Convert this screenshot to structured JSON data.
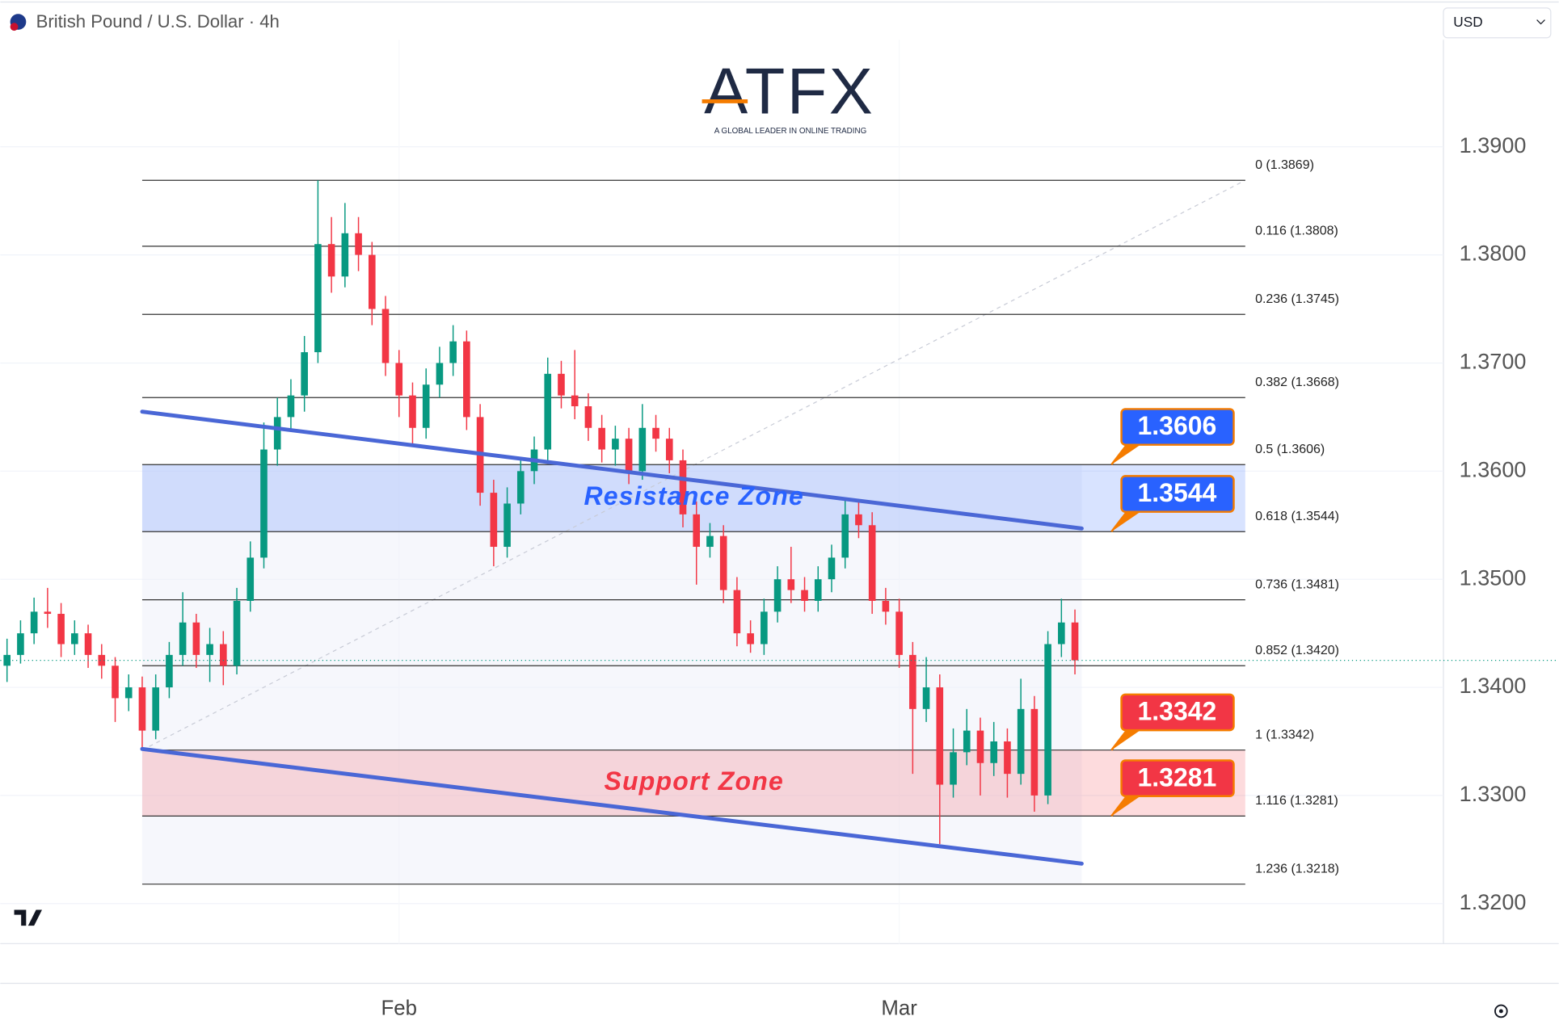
{
  "header": {
    "title": "British Pound / U.S. Dollar · 4h",
    "currency": "USD"
  },
  "logo": {
    "name": "ATFX",
    "tagline": "A GLOBAL LEADER IN ONLINE TRADING"
  },
  "chart_data": {
    "type": "candlestick",
    "up_color": "#089981",
    "down_color": "#f23645",
    "ohlc": [
      [
        1.342,
        1.3445,
        1.3405,
        1.343
      ],
      [
        1.343,
        1.3462,
        1.3422,
        1.345
      ],
      [
        1.345,
        1.3483,
        1.344,
        1.347
      ],
      [
        1.347,
        1.3492,
        1.3455,
        1.3468
      ],
      [
        1.3468,
        1.3478,
        1.3428,
        1.344
      ],
      [
        1.344,
        1.3462,
        1.343,
        1.345
      ],
      [
        1.345,
        1.3458,
        1.3418,
        1.343
      ],
      [
        1.343,
        1.344,
        1.3408,
        1.342
      ],
      [
        1.342,
        1.3428,
        1.3368,
        1.339
      ],
      [
        1.339,
        1.3412,
        1.3378,
        1.34
      ],
      [
        1.34,
        1.341,
        1.3342,
        1.336
      ],
      [
        1.336,
        1.3412,
        1.3352,
        1.34
      ],
      [
        1.34,
        1.3442,
        1.339,
        1.343
      ],
      [
        1.343,
        1.3488,
        1.342,
        1.346
      ],
      [
        1.346,
        1.3468,
        1.3418,
        1.343
      ],
      [
        1.343,
        1.3455,
        1.3405,
        1.344
      ],
      [
        1.344,
        1.3452,
        1.3402,
        1.342
      ],
      [
        1.342,
        1.3492,
        1.3412,
        1.348
      ],
      [
        1.348,
        1.3535,
        1.347,
        1.352
      ],
      [
        1.352,
        1.3645,
        1.351,
        1.362
      ],
      [
        1.362,
        1.3668,
        1.3605,
        1.365
      ],
      [
        1.365,
        1.3685,
        1.3638,
        1.367
      ],
      [
        1.367,
        1.3725,
        1.3655,
        1.371
      ],
      [
        1.371,
        1.3869,
        1.37,
        1.381
      ],
      [
        1.381,
        1.3835,
        1.3765,
        1.378
      ],
      [
        1.378,
        1.3848,
        1.377,
        1.382
      ],
      [
        1.382,
        1.3835,
        1.3785,
        1.38
      ],
      [
        1.38,
        1.3812,
        1.3735,
        1.375
      ],
      [
        1.375,
        1.3762,
        1.3688,
        1.37
      ],
      [
        1.37,
        1.3712,
        1.365,
        1.367
      ],
      [
        1.367,
        1.3682,
        1.3625,
        1.364
      ],
      [
        1.364,
        1.3695,
        1.363,
        1.368
      ],
      [
        1.368,
        1.3715,
        1.3668,
        1.37
      ],
      [
        1.37,
        1.3735,
        1.3688,
        1.372
      ],
      [
        1.372,
        1.373,
        1.3638,
        1.365
      ],
      [
        1.365,
        1.3662,
        1.3568,
        1.358
      ],
      [
        1.358,
        1.3592,
        1.3512,
        1.353
      ],
      [
        1.353,
        1.3585,
        1.352,
        1.357
      ],
      [
        1.357,
        1.3612,
        1.356,
        1.36
      ],
      [
        1.36,
        1.3632,
        1.3588,
        1.362
      ],
      [
        1.362,
        1.3705,
        1.361,
        1.369
      ],
      [
        1.369,
        1.3702,
        1.3658,
        1.367
      ],
      [
        1.367,
        1.3712,
        1.3648,
        1.366
      ],
      [
        1.366,
        1.3672,
        1.3628,
        1.364
      ],
      [
        1.364,
        1.3652,
        1.3608,
        1.362
      ],
      [
        1.362,
        1.3642,
        1.3605,
        1.363
      ],
      [
        1.363,
        1.364,
        1.3588,
        1.36
      ],
      [
        1.36,
        1.3662,
        1.3592,
        1.364
      ],
      [
        1.364,
        1.3652,
        1.3618,
        1.363
      ],
      [
        1.363,
        1.364,
        1.3598,
        1.361
      ],
      [
        1.361,
        1.362,
        1.3548,
        1.356
      ],
      [
        1.356,
        1.3572,
        1.3495,
        1.353
      ],
      [
        1.353,
        1.3552,
        1.352,
        1.354
      ],
      [
        1.354,
        1.355,
        1.3478,
        1.349
      ],
      [
        1.349,
        1.3502,
        1.3438,
        1.345
      ],
      [
        1.345,
        1.3462,
        1.3432,
        1.344
      ],
      [
        1.344,
        1.3482,
        1.343,
        1.347
      ],
      [
        1.347,
        1.3512,
        1.346,
        1.35
      ],
      [
        1.35,
        1.353,
        1.3478,
        1.349
      ],
      [
        1.349,
        1.3502,
        1.347,
        1.348
      ],
      [
        1.348,
        1.3512,
        1.347,
        1.35
      ],
      [
        1.35,
        1.3532,
        1.3488,
        1.352
      ],
      [
        1.352,
        1.3575,
        1.351,
        1.356
      ],
      [
        1.356,
        1.3572,
        1.3538,
        1.355
      ],
      [
        1.355,
        1.3562,
        1.3468,
        1.348
      ],
      [
        1.348,
        1.3492,
        1.3458,
        1.347
      ],
      [
        1.347,
        1.3482,
        1.3418,
        1.343
      ],
      [
        1.343,
        1.3442,
        1.332,
        1.338
      ],
      [
        1.338,
        1.3428,
        1.3368,
        1.34
      ],
      [
        1.34,
        1.3412,
        1.3255,
        1.331
      ],
      [
        1.331,
        1.3362,
        1.3298,
        1.334
      ],
      [
        1.334,
        1.338,
        1.3328,
        1.336
      ],
      [
        1.336,
        1.3372,
        1.33,
        1.333
      ],
      [
        1.333,
        1.3368,
        1.3318,
        1.335
      ],
      [
        1.335,
        1.3362,
        1.3298,
        1.332
      ],
      [
        1.332,
        1.3408,
        1.331,
        1.338
      ],
      [
        1.338,
        1.3392,
        1.3285,
        1.33
      ],
      [
        1.33,
        1.3452,
        1.3292,
        1.344
      ],
      [
        1.344,
        1.3482,
        1.3428,
        1.346
      ],
      [
        1.346,
        1.3472,
        1.3412,
        1.3425
      ]
    ],
    "xlim": [
      -0.5,
      106.26
    ],
    "xticks": [
      {
        "value": 29,
        "label": "Feb"
      },
      {
        "value": 66,
        "label": "Mar"
      }
    ],
    "ylim": [
      1.3163,
      1.3999
    ],
    "yticks": [
      {
        "value": 1.32,
        "label": "1.3200"
      },
      {
        "value": 1.33,
        "label": "1.3300"
      },
      {
        "value": 1.34,
        "label": "1.3400"
      },
      {
        "value": 1.35,
        "label": "1.3500"
      },
      {
        "value": 1.36,
        "label": "1.3600"
      },
      {
        "value": 1.37,
        "label": "1.3700"
      },
      {
        "value": 1.38,
        "label": "1.3800"
      },
      {
        "value": 1.39,
        "label": "1.3900"
      }
    ],
    "grid": true,
    "fib_x": [
      10,
      91.6
    ],
    "fib": [
      {
        "label": "0 (1.3869)",
        "value": 1.3869
      },
      {
        "label": "0.116 (1.3808)",
        "value": 1.3808
      },
      {
        "label": "0.236 (1.3745)",
        "value": 1.3745
      },
      {
        "label": "0.382 (1.3668)",
        "value": 1.3668
      },
      {
        "label": "0.5 (1.3606)",
        "value": 1.3606
      },
      {
        "label": "0.618 (1.3544)",
        "value": 1.3544
      },
      {
        "label": "0.736 (1.3481)",
        "value": 1.3481
      },
      {
        "label": "0.852 (1.3420)",
        "value": 1.342
      },
      {
        "label": "1 (1.3342)",
        "value": 1.3342
      },
      {
        "label": "1.116 (1.3281)",
        "value": 1.3281
      },
      {
        "label": "1.236 (1.3218)",
        "value": 1.3218
      }
    ],
    "zones": [
      {
        "label": "Resistance Zone",
        "range": [
          1.3544,
          1.3606
        ],
        "color": "#2962ff"
      },
      {
        "label": "Support Zone",
        "range": [
          1.3281,
          1.3342
        ],
        "color": "#f23645"
      }
    ],
    "trendlines": [
      {
        "x": [
          10,
          79.5
        ],
        "y": [
          1.3655,
          1.3547
        ],
        "color": "#4a67d6"
      },
      {
        "x": [
          10,
          79.5
        ],
        "y": [
          1.3343,
          1.3237
        ],
        "color": "#4a67d6"
      }
    ],
    "price_tags": [
      {
        "value": 1.3606,
        "color": "#2962ff"
      },
      {
        "value": 1.3544,
        "color": "#2962ff"
      },
      {
        "value": 1.3342,
        "color": "#f23645"
      },
      {
        "value": 1.3281,
        "color": "#f23645"
      }
    ]
  }
}
